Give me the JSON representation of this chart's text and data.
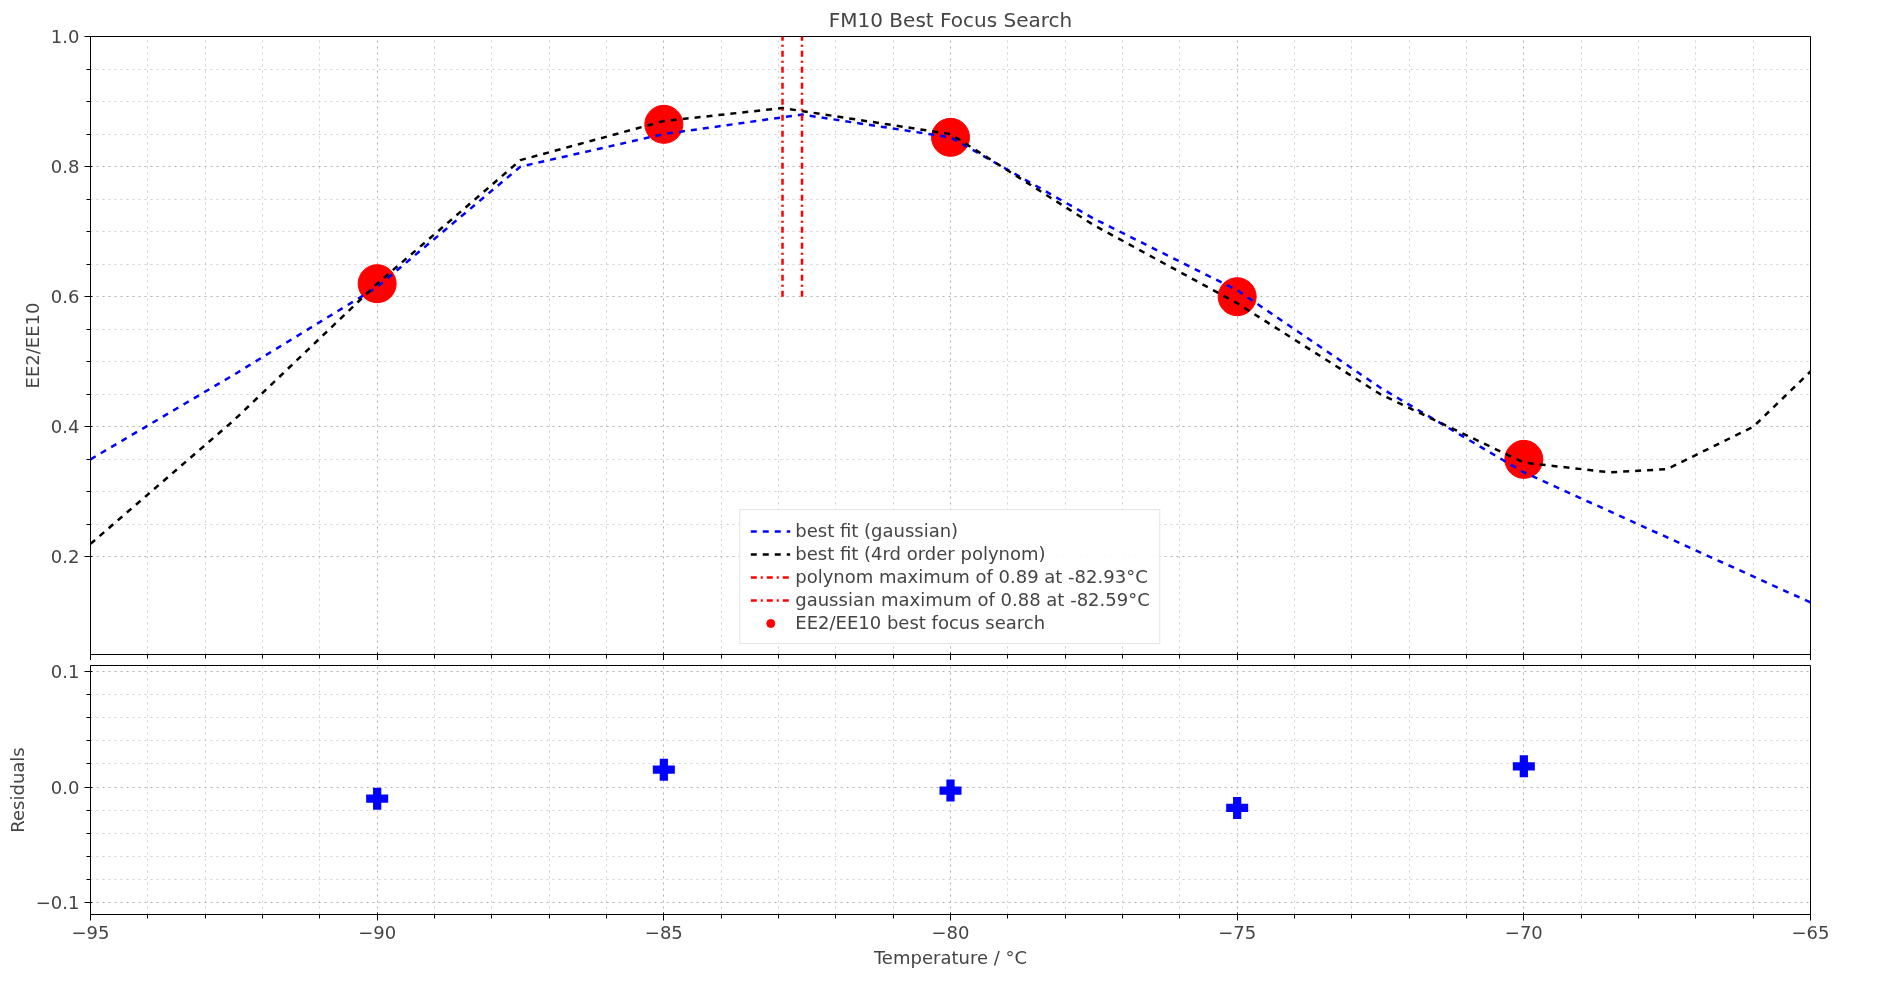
{
  "chart_data": [
    {
      "type": "line",
      "title": "FM10 Best Focus Search",
      "ylabel": "EE2/EE10",
      "xlim": [
        -95,
        -65
      ],
      "ylim": [
        0.05,
        1.0
      ],
      "xticks": [
        -95,
        -90,
        -85,
        -80,
        -75,
        -70,
        -65
      ],
      "yticks": [
        0.2,
        0.4,
        0.6,
        0.8,
        {
          "value": 1.0,
          "label": "1.0"
        }
      ],
      "grid": true,
      "legend": "bottom",
      "tick_labels": "y",
      "series": [
        {
          "name": "best fit (gaussian)",
          "color": "#0000ff",
          "line_style": "dashed",
          "x": [
            -95,
            -92.5,
            -90,
            -87.5,
            -85,
            -82.59,
            -80,
            -77.5,
            -75,
            -72.5,
            -70,
            -67.5,
            -65
          ],
          "values": [
            0.35,
            0.48,
            0.615,
            0.8,
            0.85,
            0.88,
            0.845,
            0.72,
            0.61,
            0.46,
            0.33,
            0.23,
            0.13
          ]
        },
        {
          "name": "best fit (4rd order polynom)",
          "color": "#000000",
          "line_style": "dashed",
          "x": [
            -95,
            -92.5,
            -90,
            -87.5,
            -85,
            -82.93,
            -80,
            -77.5,
            -75,
            -72.5,
            -70,
            -68.5,
            -67.5,
            -66,
            -65
          ],
          "values": [
            0.22,
            0.41,
            0.62,
            0.81,
            0.87,
            0.89,
            0.85,
            0.71,
            0.59,
            0.45,
            0.345,
            0.33,
            0.335,
            0.4,
            0.485
          ]
        },
        {
          "name": "polynom maximum of 0.89 at -82.93°C",
          "color": "#ff0000",
          "line_style": "dashdot",
          "x": [
            -82.93,
            -82.93
          ],
          "values": [
            0.6,
            1.0
          ]
        },
        {
          "name": "gaussian maximum of 0.88 at -82.59°C",
          "color": "#ff0000",
          "line_style": "dashdot",
          "x": [
            -82.59,
            -82.59
          ],
          "values": [
            0.6,
            1.0
          ]
        },
        {
          "name": "EE2/EE10 best focus search",
          "type": "scatter",
          "marker": "circle",
          "color": "#ff0000",
          "x": [
            -90,
            -85,
            -80,
            -75,
            -70
          ],
          "values": [
            0.62,
            0.865,
            0.845,
            0.6,
            0.35
          ]
        }
      ]
    },
    {
      "type": "scatter",
      "xlabel": "Temperature / °C",
      "ylabel": "Residuals",
      "xlim": [
        -95,
        -65
      ],
      "ylim": [
        -0.11,
        0.105
      ],
      "xticks": [
        {
          "value": -95,
          "label": "−95"
        },
        {
          "value": -90,
          "label": "−90"
        },
        {
          "value": -85,
          "label": "−85"
        },
        {
          "value": -80,
          "label": "−80"
        },
        {
          "value": -75,
          "label": "−75"
        },
        {
          "value": -70,
          "label": "−70"
        },
        {
          "value": -65,
          "label": "−65"
        }
      ],
      "yticks": [
        {
          "value": -0.1,
          "label": "−0.1"
        },
        {
          "value": 0.0,
          "label": "0.0"
        },
        {
          "value": 0.1,
          "label": "0.1"
        }
      ],
      "grid": true,
      "series": [
        {
          "marker": "cross",
          "color": "#0000ff",
          "x": [
            -90,
            -85,
            -80,
            -75,
            -70
          ],
          "values": [
            -0.01,
            0.015,
            -0.003,
            -0.018,
            0.018
          ]
        }
      ]
    }
  ]
}
